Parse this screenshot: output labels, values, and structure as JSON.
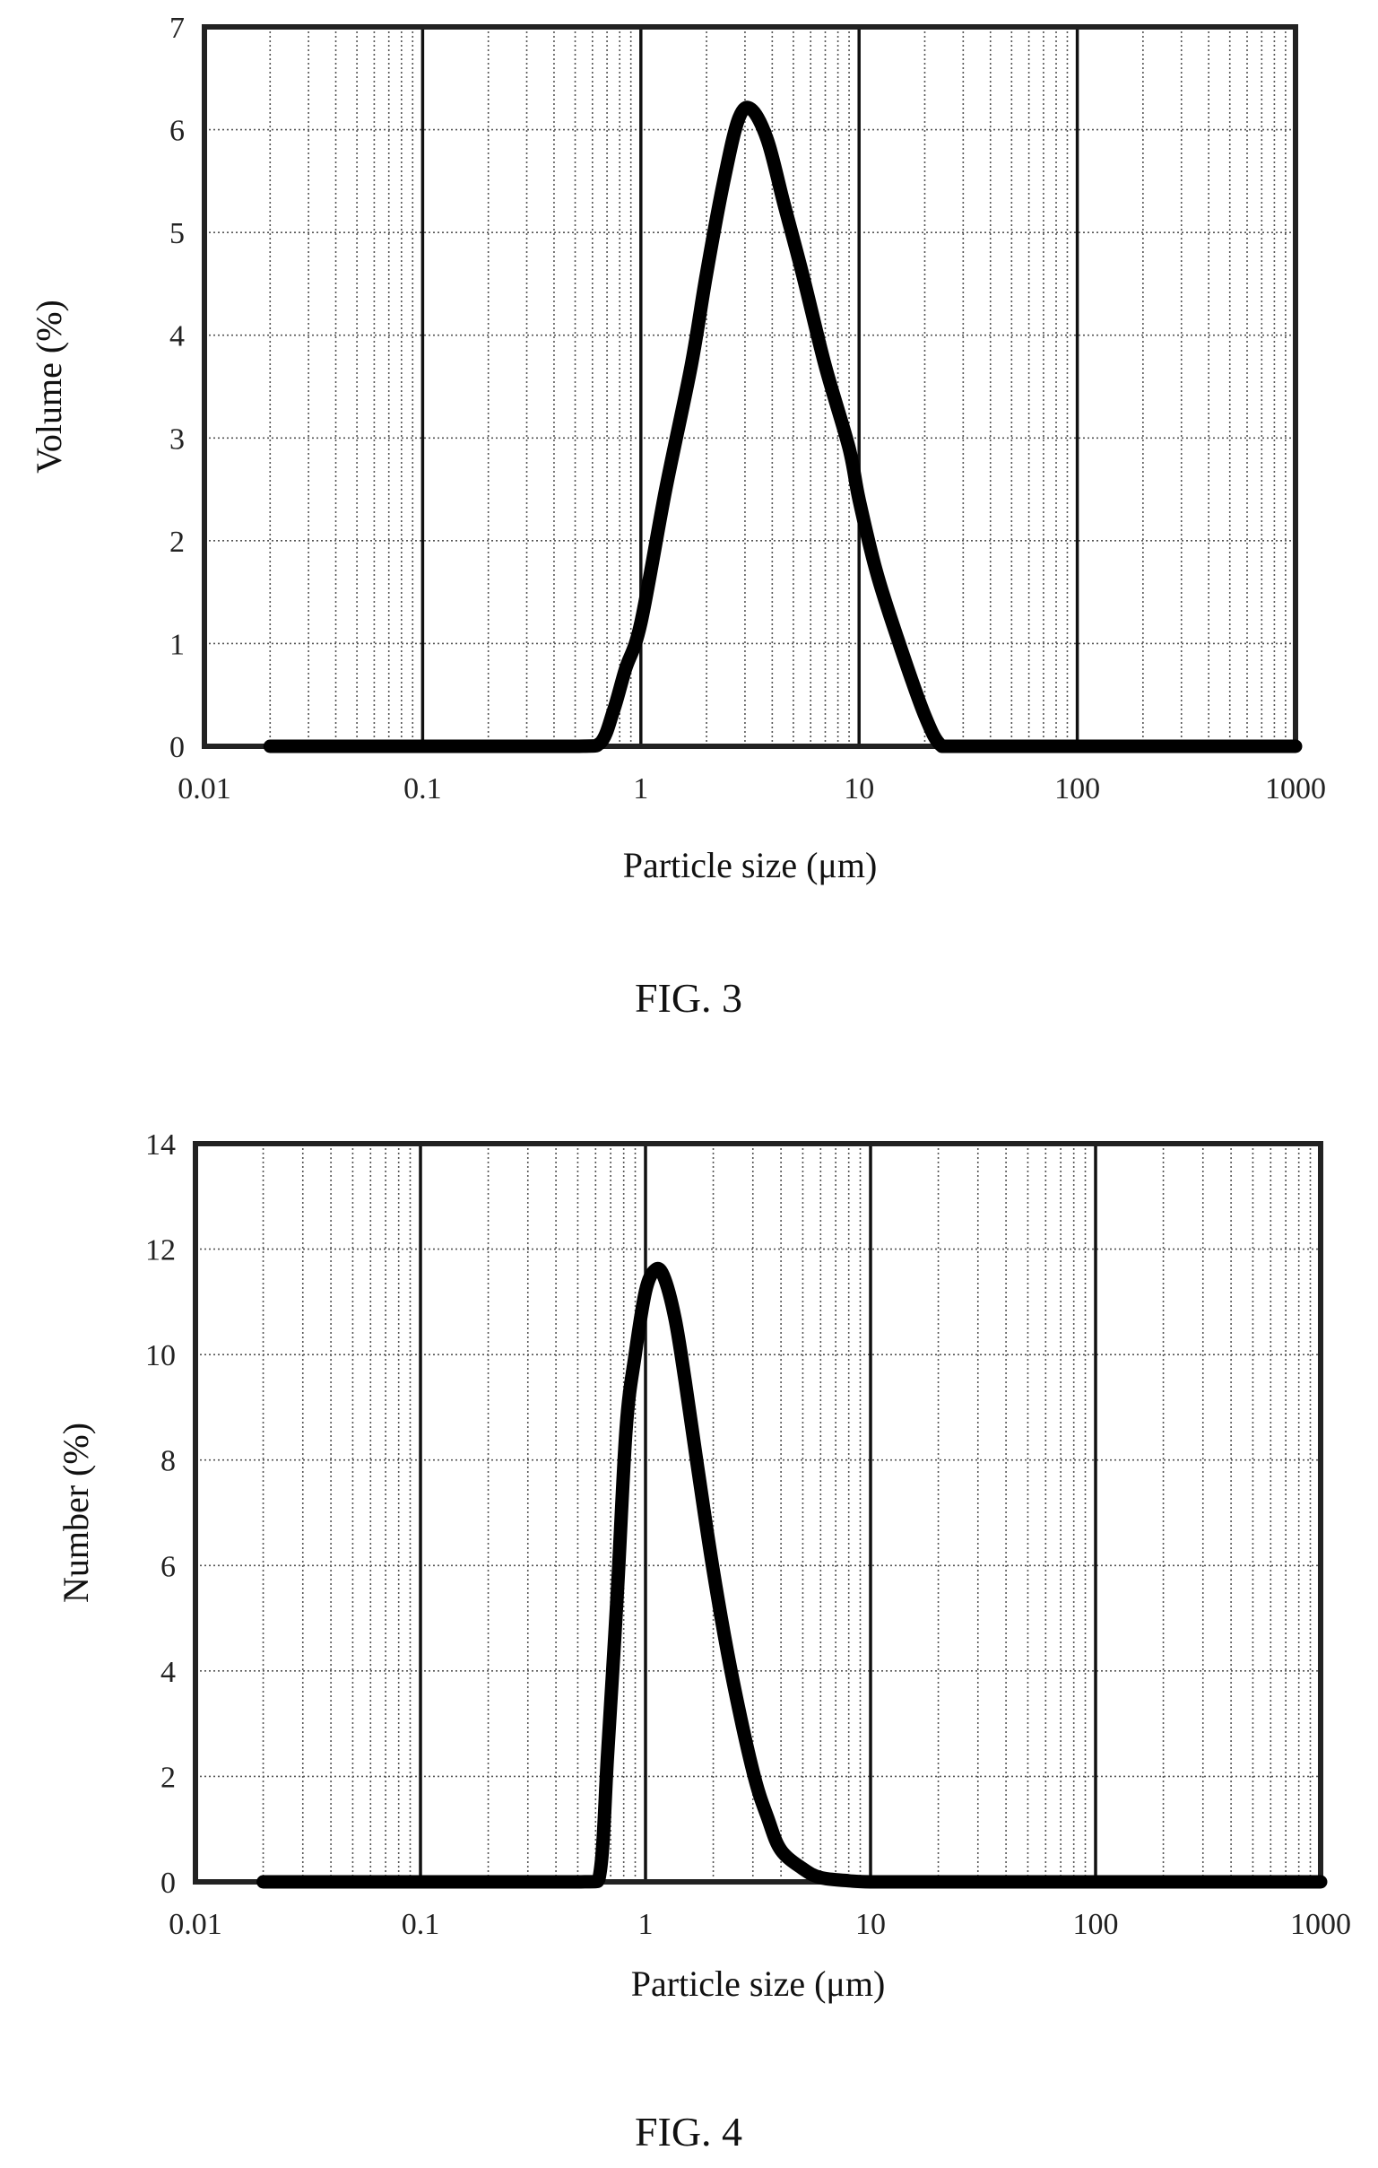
{
  "chart_data": [
    {
      "type": "line",
      "figure_label": "FIG. 3",
      "title": "",
      "xlabel": "Particle size (μm)",
      "ylabel": "Volume (%)",
      "x_scale": "log",
      "xlim": [
        0.01,
        1000
      ],
      "ylim": [
        0,
        7
      ],
      "x_ticks": [
        0.01,
        0.1,
        1,
        10,
        100,
        1000
      ],
      "x_tick_labels": [
        "0.01",
        "0.1",
        "1",
        "10",
        "100",
        "1000"
      ],
      "y_ticks": [
        0,
        1,
        2,
        3,
        4,
        5,
        6,
        7
      ],
      "y_tick_labels": [
        "0",
        "1",
        "2",
        "3",
        "4",
        "5",
        "6",
        "7"
      ],
      "grid": true,
      "series": [
        {
          "x": [
            0.02,
            0.1,
            0.5,
            0.65,
            0.75,
            0.85,
            1.0,
            1.3,
            1.7,
            2.0,
            2.4,
            2.8,
            3.2,
            3.8,
            4.5,
            5.5,
            7.0,
            9.0,
            10.0,
            12.0,
            15.0,
            20.0,
            24.0,
            30.0,
            100.0,
            1000.0
          ],
          "y": [
            0,
            0,
            0,
            0.03,
            0.35,
            0.75,
            1.2,
            2.5,
            3.7,
            4.6,
            5.5,
            6.1,
            6.2,
            5.9,
            5.3,
            4.6,
            3.7,
            2.9,
            2.4,
            1.7,
            1.05,
            0.3,
            0,
            0,
            0,
            0
          ]
        }
      ]
    },
    {
      "type": "line",
      "figure_label": "FIG. 4",
      "title": "",
      "xlabel": "Particle size (μm)",
      "ylabel": "Number (%)",
      "x_scale": "log",
      "xlim": [
        0.01,
        1000
      ],
      "ylim": [
        0,
        14
      ],
      "x_ticks": [
        0.01,
        0.1,
        1,
        10,
        100,
        1000
      ],
      "x_tick_labels": [
        "0.01",
        "0.1",
        "1",
        "10",
        "100",
        "1000"
      ],
      "y_ticks": [
        0,
        2,
        4,
        6,
        8,
        10,
        12,
        14
      ],
      "y_tick_labels": [
        "0",
        "2",
        "4",
        "6",
        "8",
        "10",
        "12",
        "14"
      ],
      "grid": true,
      "series": [
        {
          "x": [
            0.02,
            0.1,
            0.5,
            0.62,
            0.68,
            0.75,
            0.82,
            0.9,
            1.0,
            1.1,
            1.2,
            1.35,
            1.5,
            1.7,
            2.0,
            2.4,
            3.0,
            3.5,
            4.0,
            5.0,
            6.0,
            8.0,
            10.0,
            20.0,
            100.0,
            1000.0
          ],
          "y": [
            0,
            0,
            0,
            0.05,
            2.5,
            5.5,
            8.6,
            10.0,
            11.2,
            11.6,
            11.5,
            10.7,
            9.5,
            7.9,
            5.9,
            4.0,
            2.1,
            1.2,
            0.6,
            0.25,
            0.08,
            0.02,
            0,
            0,
            0,
            0
          ]
        }
      ]
    }
  ]
}
